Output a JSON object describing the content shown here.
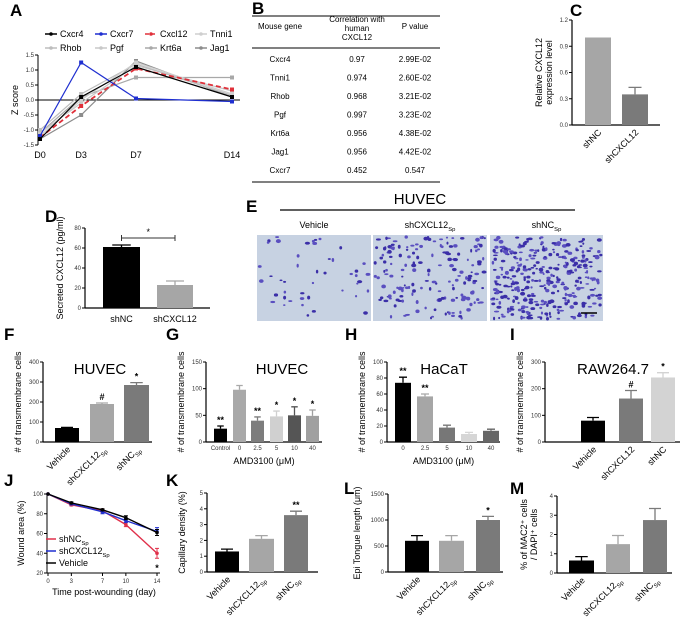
{
  "chart_data": [
    {
      "panel": "A",
      "type": "line",
      "ylabel": "Z score",
      "x_labels": [
        "D0",
        "D3",
        "D7",
        "D14"
      ],
      "x_days": [
        0,
        3,
        7,
        14
      ],
      "ylim": [
        -1.5,
        1.5
      ],
      "yticks": [
        "-1.5",
        "-1.0",
        "-0.5",
        "0.0",
        "0.5",
        "1.0",
        "1.5"
      ],
      "series": [
        {
          "name": "Cxcr4",
          "color": "#000000",
          "dashed": false,
          "values": [
            -1.3,
            0.1,
            1.1,
            0.1
          ]
        },
        {
          "name": "Cxcr7",
          "color": "#1f2fd0",
          "dashed": false,
          "values": [
            -1.2,
            1.25,
            0.05,
            -0.05
          ]
        },
        {
          "name": "Cxcl12",
          "color": "#e0303a",
          "dashed": true,
          "values": [
            -1.25,
            -0.2,
            1.05,
            0.35
          ]
        },
        {
          "name": "Tnni1",
          "color": "#cfcfcf",
          "dashed": false,
          "values": [
            -1.2,
            0.0,
            1.25,
            0.2
          ]
        },
        {
          "name": "Rhob",
          "color": "#bdbdbd",
          "dashed": false,
          "values": [
            -1.0,
            0.2,
            1.2,
            0.15
          ]
        },
        {
          "name": "Pgf",
          "color": "#c8c8c8",
          "dashed": false,
          "values": [
            -1.1,
            -0.1,
            1.15,
            0.3
          ]
        },
        {
          "name": "Krt6a",
          "color": "#a8a8a8",
          "dashed": false,
          "values": [
            -1.1,
            0.1,
            0.75,
            0.75
          ]
        },
        {
          "name": "Jag1",
          "color": "#8c8c8c",
          "dashed": false,
          "values": [
            -1.3,
            -0.5,
            1.3,
            0.1
          ]
        }
      ]
    },
    {
      "panel": "B",
      "type": "table",
      "headers": [
        [
          "Mouse gene"
        ],
        [
          "Correlation with",
          "human",
          "CXCL12"
        ],
        [
          "P value"
        ]
      ],
      "rows": [
        [
          "Cxcr4",
          "0.97",
          "2.99E-02"
        ],
        [
          "Tnni1",
          "0.974",
          "2.60E-02"
        ],
        [
          "Rhob",
          "0.968",
          "3.21E-02"
        ],
        [
          "Pgf",
          "0.997",
          "3.23E-02"
        ],
        [
          "Krt6a",
          "0.956",
          "4.38E-02"
        ],
        [
          "Jag1",
          "0.956",
          "4.42E-02"
        ],
        [
          "Cxcr7",
          "0.452",
          "0.547"
        ]
      ]
    },
    {
      "panel": "C",
      "type": "bar",
      "title": "",
      "ylabel": [
        "Relative CXCL12",
        "expression level"
      ],
      "xlabel": "",
      "ylim": [
        0,
        1.2
      ],
      "yticks": [
        "0.0",
        "0.3",
        "0.6",
        "0.9",
        "1.2"
      ],
      "rotate": true,
      "bars": [
        {
          "label": "shNC",
          "sub": "",
          "value": 1.0,
          "err": 0,
          "color": "#a6a6a6",
          "sig": ""
        },
        {
          "label": "shCXCL12",
          "sub": "",
          "value": 0.35,
          "err": 0.08,
          "color": "#7a7a7a",
          "sig": ""
        }
      ]
    },
    {
      "panel": "D",
      "type": "bar",
      "title": "",
      "ylabel": [
        "Secreted CXCL12 (pg/ml)"
      ],
      "xlabel": "",
      "ylim": [
        0,
        80
      ],
      "yticks": [
        "0",
        "20",
        "40",
        "60",
        "80"
      ],
      "rotate": false,
      "bracket_sig": "*",
      "bars": [
        {
          "label": "shNC",
          "sub": "",
          "value": 61,
          "err": 2,
          "color": "#000000",
          "sig": ""
        },
        {
          "label": "shCXCL12",
          "sub": "",
          "value": 23,
          "err": 4,
          "color": "#a6a6a6",
          "sig": ""
        }
      ]
    },
    {
      "panel": "F",
      "type": "bar",
      "title": "HUVEC",
      "ylabel": [
        "# of transmembrane cells"
      ],
      "xlabel": "",
      "ylim": [
        0,
        400
      ],
      "yticks": [
        "0",
        "100",
        "200",
        "300",
        "400"
      ],
      "rotate": true,
      "bars": [
        {
          "label": "Vehicle",
          "sub": "",
          "value": 70,
          "err": 3,
          "color": "#000000",
          "sig": ""
        },
        {
          "label": "shCXCL12",
          "sub": "Sp",
          "value": 190,
          "err": 5,
          "color": "#a6a6a6",
          "sig": "#"
        },
        {
          "label": "shNC",
          "sub": "Sp",
          "value": 285,
          "err": 12,
          "color": "#7a7a7a",
          "sig": "*"
        }
      ]
    },
    {
      "panel": "G",
      "type": "bar",
      "title": "HUVEC",
      "ylabel": [
        "# of transmembrane cells"
      ],
      "xlabel": "AMD3100 (μM)",
      "ylim": [
        0,
        150
      ],
      "yticks": [
        "0",
        "50",
        "100",
        "150"
      ],
      "rotate": false,
      "bars": [
        {
          "label": "Control",
          "sub": "",
          "value": 25,
          "err": 5,
          "color": "#000000",
          "sig": "**"
        },
        {
          "label": "0",
          "sub": "",
          "value": 98,
          "err": 8,
          "color": "#a9a9a9",
          "sig": ""
        },
        {
          "label": "2.5",
          "sub": "",
          "value": 40,
          "err": 7,
          "color": "#7d7d7d",
          "sig": "**"
        },
        {
          "label": "5",
          "sub": "",
          "value": 48,
          "err": 10,
          "color": "#d0d0d0",
          "sig": "*"
        },
        {
          "label": "10",
          "sub": "",
          "value": 50,
          "err": 16,
          "color": "#555555",
          "sig": "*"
        },
        {
          "label": "40",
          "sub": "",
          "value": 49,
          "err": 11,
          "color": "#a0a0a0",
          "sig": "*"
        }
      ]
    },
    {
      "panel": "H",
      "type": "bar",
      "title": "HaCaT",
      "ylabel": [
        "# of transmembrane cells"
      ],
      "xlabel": "AMD3100 (μM)",
      "ylim": [
        0,
        100
      ],
      "yticks": [
        "0",
        "20",
        "40",
        "60",
        "80",
        "100"
      ],
      "rotate": false,
      "bars": [
        {
          "label": "0",
          "sub": "",
          "value": 74,
          "err": 7,
          "color": "#000000",
          "sig": "**"
        },
        {
          "label": "2.5",
          "sub": "",
          "value": 57,
          "err": 3,
          "color": "#a6a6a6",
          "sig": "**"
        },
        {
          "label": "5",
          "sub": "",
          "value": 18,
          "err": 3,
          "color": "#777777",
          "sig": ""
        },
        {
          "label": "10",
          "sub": "",
          "value": 10,
          "err": 2,
          "color": "#d6d6d6",
          "sig": ""
        },
        {
          "label": "40",
          "sub": "",
          "value": 14,
          "err": 2,
          "color": "#666666",
          "sig": ""
        }
      ]
    },
    {
      "panel": "I",
      "type": "bar",
      "title": "RAW264.7",
      "ylabel": [
        "# of transmembrane cells"
      ],
      "xlabel": "",
      "ylim": [
        0,
        300
      ],
      "yticks": [
        "0",
        "100",
        "200",
        "300"
      ],
      "rotate": true,
      "bars": [
        {
          "label": "Vehicle",
          "sub": "",
          "value": 80,
          "err": 12,
          "color": "#000000",
          "sig": ""
        },
        {
          "label": "shCXCL12",
          "sub": "",
          "value": 163,
          "err": 30,
          "color": "#7a7a7a",
          "sig": "#"
        },
        {
          "label": "shNC",
          "sub": "",
          "value": 242,
          "err": 18,
          "color": "#d3d3d3",
          "sig": "*"
        }
      ]
    },
    {
      "panel": "J",
      "type": "line",
      "ylabel": "Wound area (%)",
      "xlabel": "Time post-wounding (day)",
      "x": [
        0,
        3,
        7,
        10,
        14
      ],
      "xticks": [
        "0",
        "3",
        "7",
        "10",
        "14"
      ],
      "ylim": [
        20,
        100
      ],
      "yticks": [
        "20",
        "40",
        "60",
        "80",
        "100"
      ],
      "sig_at_last": "*",
      "series": [
        {
          "name": "shNC",
          "sub": "Sp",
          "color": "#e0304a",
          "values": [
            100,
            89,
            83,
            69,
            40
          ],
          "err": [
            0,
            1,
            2,
            2,
            5
          ]
        },
        {
          "name": "shCXCL12",
          "sub": "Sp",
          "color": "#1f2fd0",
          "values": [
            100,
            90,
            82,
            73,
            62
          ],
          "err": [
            0,
            1,
            2,
            2,
            4
          ]
        },
        {
          "name": "Vehicle",
          "sub": "",
          "color": "#000000",
          "values": [
            100,
            91,
            84,
            76,
            61
          ],
          "err": [
            0,
            1,
            1,
            2,
            3
          ]
        }
      ]
    },
    {
      "panel": "K",
      "type": "bar",
      "title": "",
      "ylabel": [
        "Capillary density (%)"
      ],
      "xlabel": "",
      "ylim": [
        0,
        5
      ],
      "yticks": [
        "0",
        "1",
        "2",
        "3",
        "4",
        "5"
      ],
      "rotate": true,
      "bars": [
        {
          "label": "Vehicle",
          "sub": "",
          "value": 1.3,
          "err": 0.15,
          "color": "#000000",
          "sig": ""
        },
        {
          "label": "shCXCL12",
          "sub": "Sp",
          "value": 2.1,
          "err": 0.2,
          "color": "#a6a6a6",
          "sig": ""
        },
        {
          "label": "shNC",
          "sub": "Sp",
          "value": 3.6,
          "err": 0.25,
          "color": "#7a7a7a",
          "sig": "**"
        }
      ]
    },
    {
      "panel": "L",
      "type": "bar",
      "title": "",
      "ylabel": [
        "Epi Tongue length (μm)"
      ],
      "xlabel": "",
      "ylim": [
        0,
        1500
      ],
      "yticks": [
        "0",
        "500",
        "1000",
        "1500"
      ],
      "rotate": true,
      "bars": [
        {
          "label": "Vehicle",
          "sub": "",
          "value": 600,
          "err": 100,
          "color": "#000000",
          "sig": ""
        },
        {
          "label": "shCXCL12",
          "sub": "Sp",
          "value": 600,
          "err": 100,
          "color": "#a6a6a6",
          "sig": ""
        },
        {
          "label": "shNC",
          "sub": "Sp",
          "value": 1000,
          "err": 70,
          "color": "#7a7a7a",
          "sig": "*"
        }
      ]
    },
    {
      "panel": "M",
      "type": "bar",
      "title": "",
      "ylabel": [
        "% of MAC2⁺ cells",
        "/ DAPI⁺ cells"
      ],
      "xlabel": "",
      "ylim": [
        0,
        4
      ],
      "yticks": [
        "0",
        "1",
        "2",
        "3",
        "4"
      ],
      "rotate": true,
      "bars": [
        {
          "label": "Vehicle",
          "sub": "",
          "value": 0.65,
          "err": 0.2,
          "color": "#000000",
          "sig": ""
        },
        {
          "label": "shCXCL12",
          "sub": "Sp",
          "value": 1.5,
          "err": 0.45,
          "color": "#a6a6a6",
          "sig": ""
        },
        {
          "label": "shNC",
          "sub": "Sp",
          "value": 2.75,
          "err": 0.6,
          "color": "#7a7a7a",
          "sig": ""
        }
      ]
    }
  ],
  "panel_e": {
    "panel": "E",
    "title": "HUVEC",
    "images": [
      {
        "label": "Vehicle",
        "sub": "",
        "cell_density": 45
      },
      {
        "label": "shCXCL12",
        "sub": "Sp",
        "cell_density": 170
      },
      {
        "label": "shNC",
        "sub": "Sp",
        "cell_density": 340
      }
    ]
  }
}
